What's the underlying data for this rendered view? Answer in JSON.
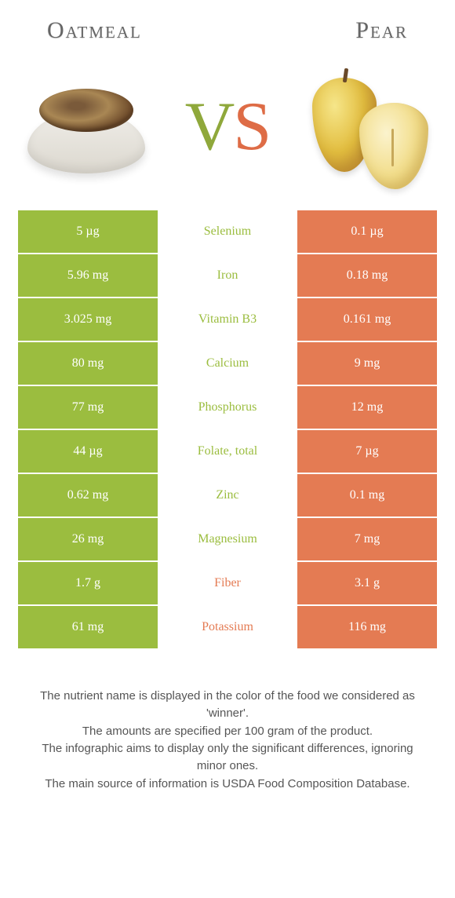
{
  "header": {
    "left": "Oatmeal",
    "right": "Pear"
  },
  "vs": {
    "v": "V",
    "s": "S"
  },
  "colors": {
    "green": "#9bbd3f",
    "orange": "#e47b53",
    "white": "#ffffff"
  },
  "rows": [
    {
      "left": "5 µg",
      "mid": "Selenium",
      "right": "0.1 µg",
      "winner": "left"
    },
    {
      "left": "5.96 mg",
      "mid": "Iron",
      "right": "0.18 mg",
      "winner": "left"
    },
    {
      "left": "3.025 mg",
      "mid": "Vitamin B3",
      "right": "0.161 mg",
      "winner": "left"
    },
    {
      "left": "80 mg",
      "mid": "Calcium",
      "right": "9 mg",
      "winner": "left"
    },
    {
      "left": "77 mg",
      "mid": "Phosphorus",
      "right": "12 mg",
      "winner": "left"
    },
    {
      "left": "44 µg",
      "mid": "Folate, total",
      "right": "7 µg",
      "winner": "left"
    },
    {
      "left": "0.62 mg",
      "mid": "Zinc",
      "right": "0.1 mg",
      "winner": "left"
    },
    {
      "left": "26 mg",
      "mid": "Magnesium",
      "right": "7 mg",
      "winner": "left"
    },
    {
      "left": "1.7 g",
      "mid": "Fiber",
      "right": "3.1 g",
      "winner": "right"
    },
    {
      "left": "61 mg",
      "mid": "Potassium",
      "right": "116 mg",
      "winner": "right"
    }
  ],
  "footer": [
    "The nutrient name is displayed in the color of the food we considered as 'winner'.",
    "The amounts are specified per 100 gram of the product.",
    "The infographic aims to display only the significant differences, ignoring minor ones.",
    "The main source of information is USDA Food Composition Database."
  ]
}
